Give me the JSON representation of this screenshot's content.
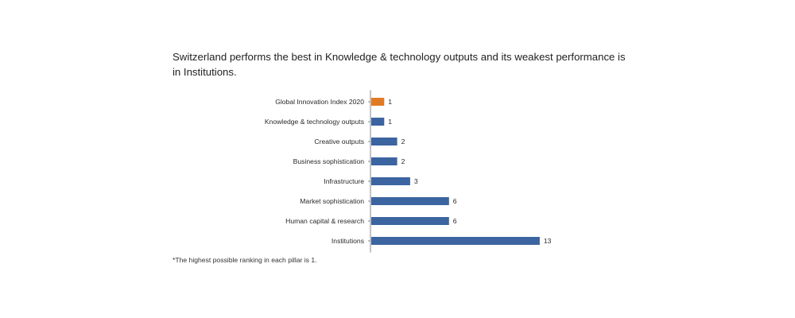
{
  "headline": "Switzerland performs the best in Knowledge & technology outputs and its weakest performance is in Institutions.",
  "footnote": "*The highest possible ranking in each pillar is 1.",
  "colors": {
    "highlight": "#e07b24",
    "bar": "#3b64a0",
    "axis": "#888888",
    "text": "#2a2a2a"
  },
  "chart_data": {
    "type": "bar",
    "orientation": "horizontal",
    "categories": [
      "Global Innovation Index 2020",
      "Knowledge & technology outputs",
      "Creative outputs",
      "Business sophistication",
      "Infrastructure",
      "Market sophistication",
      "Human capital & research",
      "Institutions"
    ],
    "values": [
      1,
      1,
      2,
      2,
      3,
      6,
      6,
      13
    ],
    "highlighted": [
      "Global Innovation Index 2020"
    ],
    "data_labels": true,
    "grid": false,
    "xlim": [
      0,
      13
    ]
  }
}
